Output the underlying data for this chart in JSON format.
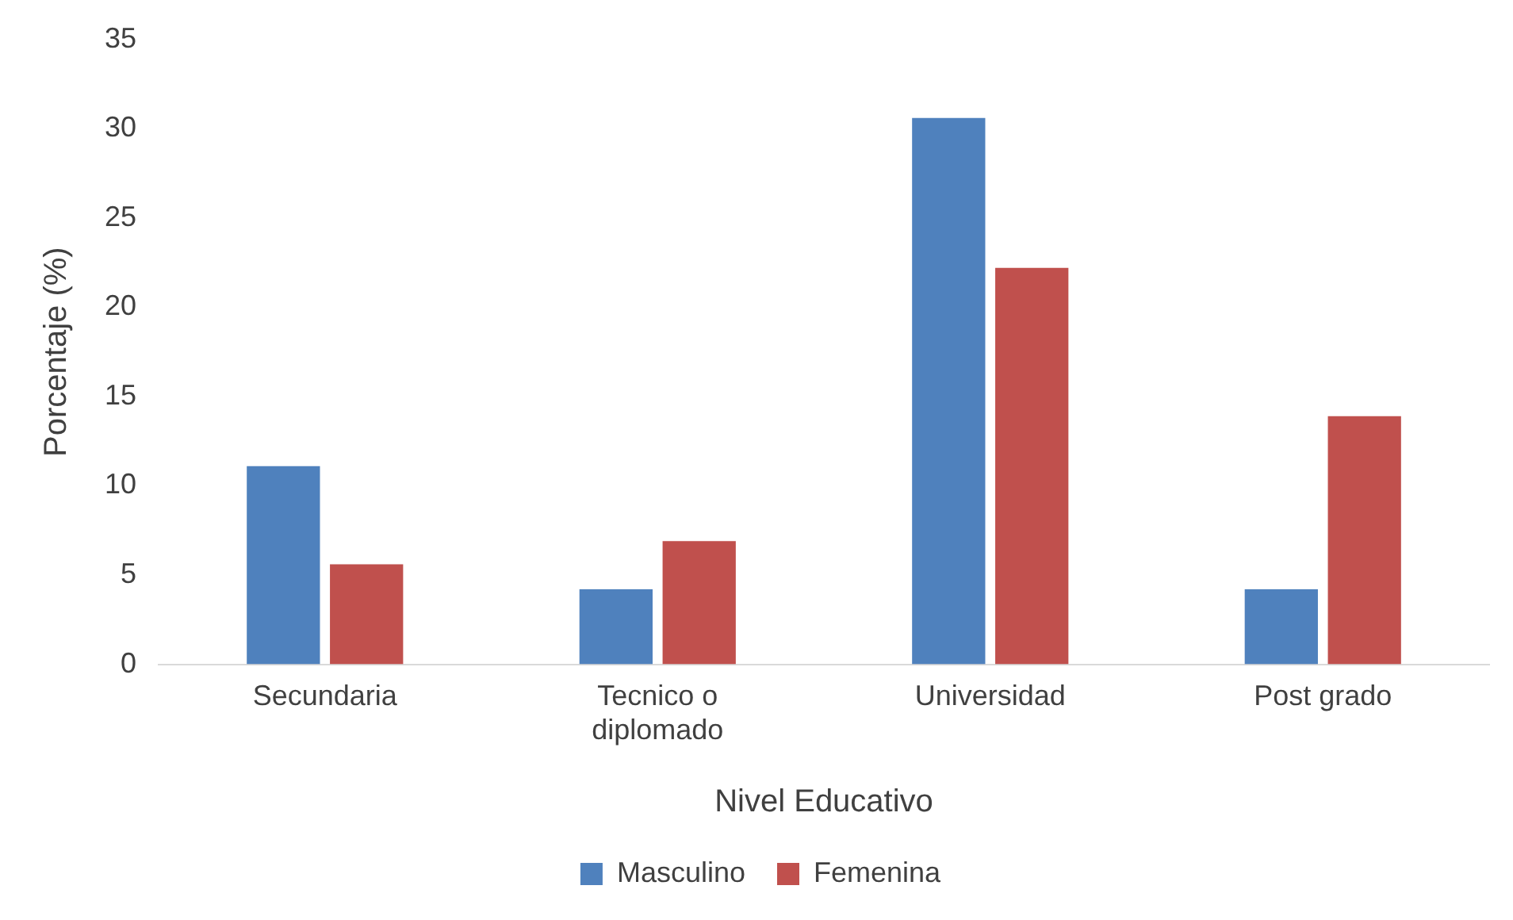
{
  "chart_data": {
    "type": "bar",
    "xlabel": "Nivel Educativo",
    "ylabel": "Porcentaje (%)",
    "categories": [
      "Secundaria",
      "Tecnico o diplomado",
      "Universidad",
      "Post grado"
    ],
    "series": [
      {
        "name": "Masculino",
        "color": "#4f81bd",
        "values": [
          11.1,
          4.2,
          30.6,
          4.2
        ]
      },
      {
        "name": "Femenina",
        "color": "#c0504d",
        "values": [
          5.6,
          6.9,
          22.2,
          13.9
        ]
      }
    ],
    "ylim": [
      0,
      35
    ],
    "yticks": [
      0,
      5,
      10,
      15,
      20,
      25,
      30,
      35
    ],
    "grid": false,
    "legend": "bottom"
  }
}
